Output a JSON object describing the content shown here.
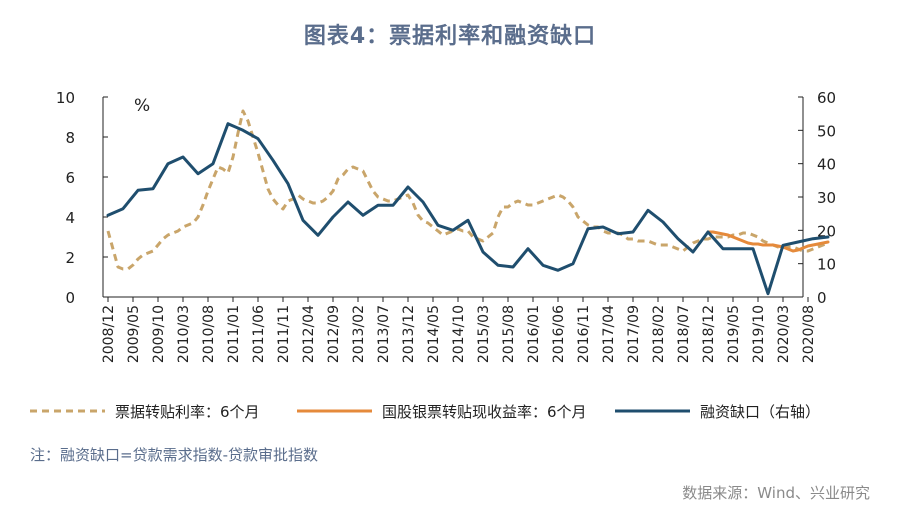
{
  "title": "图表4：票据利率和融资缺口",
  "note": "注：融资缺口=贷款需求指数-贷款审批指数",
  "source": "数据来源：Wind、兴业研究",
  "colors": {
    "bill_rate": "#c9a56a",
    "gov_bank": "#e58a3b",
    "financing_gap": "#1f4e6e",
    "axis": "#222222",
    "title": "#5a6d8c"
  },
  "chart_data": {
    "type": "line",
    "left_axis": {
      "ylim": [
        0,
        10
      ],
      "ticks": [
        0,
        2,
        4,
        6,
        8,
        10
      ],
      "unit_label": "%"
    },
    "right_axis": {
      "ylim": [
        0,
        60
      ],
      "ticks": [
        0,
        10,
        20,
        30,
        40,
        50,
        60
      ]
    },
    "x_tick_labels": [
      "2008/12",
      "2009/05",
      "2009/10",
      "2010/03",
      "2010/08",
      "2011/01",
      "2011/06",
      "2011/11",
      "2012/04",
      "2012/09",
      "2013/02",
      "2013/07",
      "2013/12",
      "2014/05",
      "2014/10",
      "2015/03",
      "2015/08",
      "2016/01",
      "2016/06",
      "2016/11",
      "2017/04",
      "2017/09",
      "2018/02",
      "2018/07",
      "2018/12",
      "2019/05",
      "2019/10",
      "2020/03",
      "2020/08"
    ],
    "legend": [
      {
        "name": "票据转贴利率：6个月",
        "style": "dashed",
        "series": "bill_rate"
      },
      {
        "name": "国股银票转贴现收益率：6个月",
        "style": "solid",
        "series": "gov_bank"
      },
      {
        "name": "融资缺口（右轴）",
        "style": "solid",
        "series": "financing_gap"
      }
    ],
    "series": [
      {
        "id": "bill_rate",
        "axis": "left",
        "x": [
          0,
          1,
          2,
          3,
          4,
          5,
          6,
          7,
          8,
          9,
          10,
          11,
          12,
          13,
          14,
          15,
          16,
          17,
          18,
          19,
          20,
          21,
          22,
          23,
          24,
          25,
          26,
          27,
          28,
          29,
          30,
          31,
          32,
          33,
          34,
          35,
          36,
          37,
          38,
          39,
          40,
          41,
          42,
          43,
          44,
          45,
          46,
          47,
          48,
          49,
          50,
          51,
          52,
          53,
          54,
          55,
          56,
          57,
          58,
          59,
          60,
          61,
          62,
          63,
          64,
          65,
          66,
          67,
          68,
          69,
          70,
          71,
          72,
          73,
          74,
          75,
          76,
          77,
          78,
          79,
          80,
          81,
          82,
          83,
          84,
          85,
          86,
          87,
          88,
          89,
          90,
          91,
          92,
          93,
          94,
          95,
          96,
          97,
          98,
          99,
          100,
          101,
          102,
          103,
          104,
          105,
          106,
          107,
          108,
          109,
          110,
          111,
          112,
          113,
          114,
          115,
          116,
          117,
          118,
          119,
          120,
          121,
          122,
          123,
          124,
          125,
          126,
          127,
          128,
          129,
          130,
          131,
          132,
          133,
          134,
          135,
          136,
          137,
          138,
          139,
          140,
          141,
          142,
          143,
          144
        ],
        "values": [
          3.3,
          2.4,
          1.5,
          1.4,
          1.4,
          1.6,
          1.9,
          2.1,
          2.2,
          2.3,
          2.6,
          2.9,
          3.1,
          3.2,
          3.3,
          3.5,
          3.6,
          3.7,
          4.0,
          4.6,
          5.3,
          5.9,
          6.5,
          6.4,
          6.2,
          7.0,
          8.2,
          9.3,
          8.8,
          8.0,
          7.2,
          6.3,
          5.4,
          4.9,
          4.6,
          4.4,
          4.8,
          4.9,
          5.1,
          4.9,
          4.8,
          4.7,
          4.7,
          4.8,
          5.0,
          5.3,
          5.9,
          6.1,
          6.4,
          6.5,
          6.4,
          6.3,
          5.8,
          5.3,
          5.0,
          4.9,
          4.8,
          4.8,
          4.9,
          5.0,
          5.1,
          4.7,
          4.1,
          3.8,
          3.7,
          3.5,
          3.3,
          3.1,
          3.2,
          3.3,
          3.4,
          3.3,
          3.3,
          3.0,
          2.9,
          2.8,
          3.0,
          3.2,
          4.0,
          4.5,
          4.5,
          4.7,
          4.8,
          4.7,
          4.6,
          4.6,
          4.7,
          4.8,
          4.9,
          5.0,
          5.1,
          5.0,
          4.8,
          4.5,
          4.0,
          3.8,
          3.6,
          3.5,
          3.5,
          3.3,
          3.2,
          3.2,
          3.2,
          3.1,
          2.9,
          2.9,
          2.8,
          2.8,
          2.8,
          2.7,
          2.6,
          2.6,
          2.6,
          2.5,
          2.4,
          2.3,
          2.5,
          2.7,
          2.8,
          2.9,
          2.9,
          3.0,
          3.0,
          3.0,
          3.0,
          3.1,
          3.1,
          3.2,
          3.2,
          3.1,
          3.0,
          2.8,
          2.7,
          2.6,
          2.5,
          2.5,
          2.5,
          2.5,
          2.4,
          2.3,
          2.3,
          2.4,
          2.5,
          2.6,
          2.7
        ]
      },
      {
        "id": "gov_bank",
        "axis": "left",
        "x": [
          120,
          121,
          122,
          123,
          124,
          125,
          126,
          127,
          128,
          129,
          130,
          131,
          132,
          133,
          134,
          135,
          136,
          137,
          138,
          139,
          140,
          141,
          142,
          143,
          144
        ],
        "values": [
          3.25,
          3.25,
          3.2,
          3.15,
          3.1,
          3.0,
          2.9,
          2.8,
          2.7,
          2.65,
          2.65,
          2.6,
          2.6,
          2.6,
          2.55,
          2.5,
          2.4,
          2.3,
          2.35,
          2.45,
          2.55,
          2.6,
          2.65,
          2.7,
          2.75
        ]
      },
      {
        "id": "financing_gap",
        "axis": "right",
        "x": [
          0,
          3,
          6,
          9,
          12,
          15,
          18,
          21,
          24,
          27,
          30,
          33,
          36,
          39,
          42,
          45,
          48,
          51,
          54,
          57,
          60,
          63,
          66,
          69,
          72,
          75,
          78,
          81,
          84,
          87,
          90,
          93,
          96,
          99,
          102,
          105,
          108,
          111,
          114,
          117,
          120,
          123,
          126,
          129,
          132,
          135,
          138,
          141,
          144
        ],
        "values": [
          24.5,
          26.5,
          32,
          32.5,
          40,
          42,
          37,
          40,
          52,
          50,
          47.5,
          41,
          34,
          23,
          18.5,
          24,
          28.5,
          24.5,
          27.5,
          27.5,
          33,
          28.5,
          21.5,
          20,
          23,
          13.5,
          9.5,
          9,
          14.5,
          9.5,
          8,
          10,
          20.5,
          21,
          19,
          19.5,
          26,
          22.5,
          17.5,
          13.5,
          19.5,
          14.5,
          14.5,
          14.5,
          1,
          15.5,
          16.5,
          17.5,
          18
        ]
      }
    ]
  }
}
